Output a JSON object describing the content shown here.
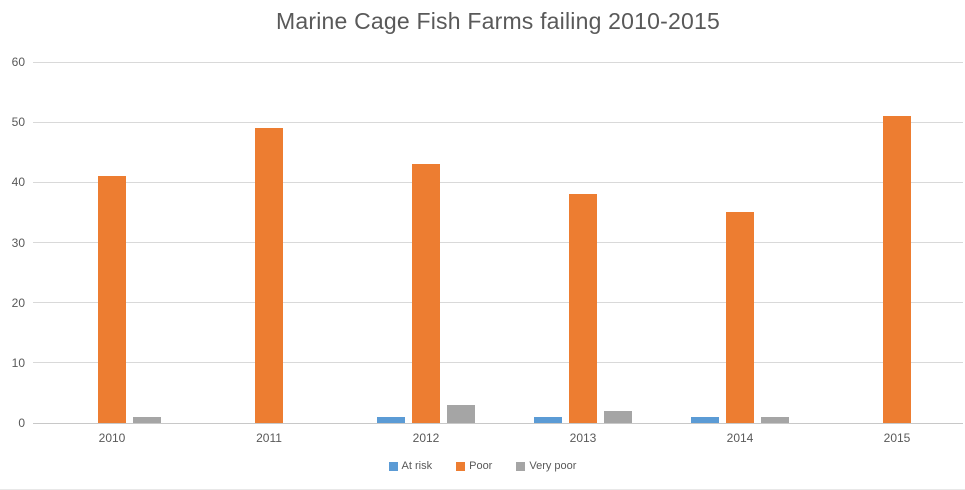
{
  "chart_data": {
    "type": "bar",
    "title": "Marine Cage Fish Farms failing 2010-2015",
    "categories": [
      "2010",
      "2011",
      "2012",
      "2013",
      "2014",
      "2015"
    ],
    "series": [
      {
        "name": "At risk",
        "color": "#5B9BD5",
        "values": [
          0,
          0,
          1,
          1,
          1,
          0
        ]
      },
      {
        "name": "Poor",
        "color": "#ED7D31",
        "values": [
          41,
          49,
          43,
          38,
          35,
          51
        ]
      },
      {
        "name": "Very poor",
        "color": "#A5A5A5",
        "values": [
          1,
          0,
          3,
          2,
          1,
          0
        ]
      }
    ],
    "xlabel": "",
    "ylabel": "",
    "ylim": [
      0,
      60
    ],
    "yticks": [
      0,
      10,
      20,
      30,
      40,
      50,
      60
    ],
    "grid": true,
    "legend_position": "bottom"
  },
  "colors": {
    "background": "#FFFFFF",
    "title_text": "#595959",
    "axis_text": "#595959",
    "gridline": "#D9D9D9",
    "axis_line": "#C8C8C8"
  }
}
